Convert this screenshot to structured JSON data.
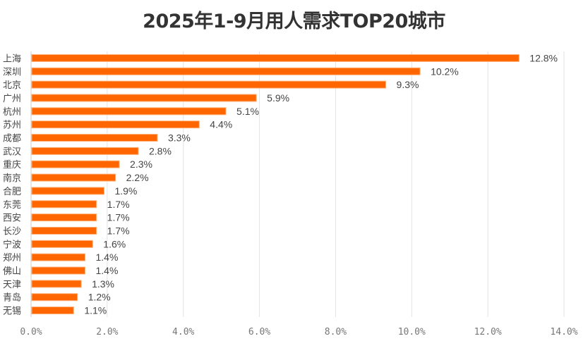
{
  "chart_data": {
    "type": "bar",
    "orientation": "horizontal",
    "title": "2025年1-9月用人需求TOP20城市",
    "categories": [
      "上海",
      "深圳",
      "北京",
      "广州",
      "杭州",
      "苏州",
      "成都",
      "武汉",
      "重庆",
      "南京",
      "合肥",
      "东莞",
      "西安",
      "长沙",
      "宁波",
      "郑州",
      "佛山",
      "天津",
      "青岛",
      "无锡"
    ],
    "values": [
      12.8,
      10.2,
      9.3,
      5.9,
      5.1,
      4.4,
      3.3,
      2.8,
      2.3,
      2.2,
      1.9,
      1.7,
      1.7,
      1.7,
      1.6,
      1.4,
      1.4,
      1.3,
      1.2,
      1.1
    ],
    "data_labels": [
      "12.8%",
      "10.2%",
      "9.3%",
      "5.9%",
      "5.1%",
      "4.4%",
      "3.3%",
      "2.8%",
      "2.3%",
      "2.2%",
      "1.9%",
      "1.7%",
      "1.7%",
      "1.7%",
      "1.6%",
      "1.4%",
      "1.4%",
      "1.3%",
      "1.2%",
      "1.1%"
    ],
    "xlim": [
      0,
      14
    ],
    "x_ticks": [
      "0.0%",
      "2.0%",
      "4.0%",
      "6.0%",
      "8.0%",
      "10.0%",
      "12.0%",
      "14.0%"
    ],
    "grid": "vertical",
    "legend": "none",
    "bar_color": "#FF6600",
    "bar_edge_color": "#FFB27A",
    "xlabel": "",
    "ylabel": ""
  }
}
